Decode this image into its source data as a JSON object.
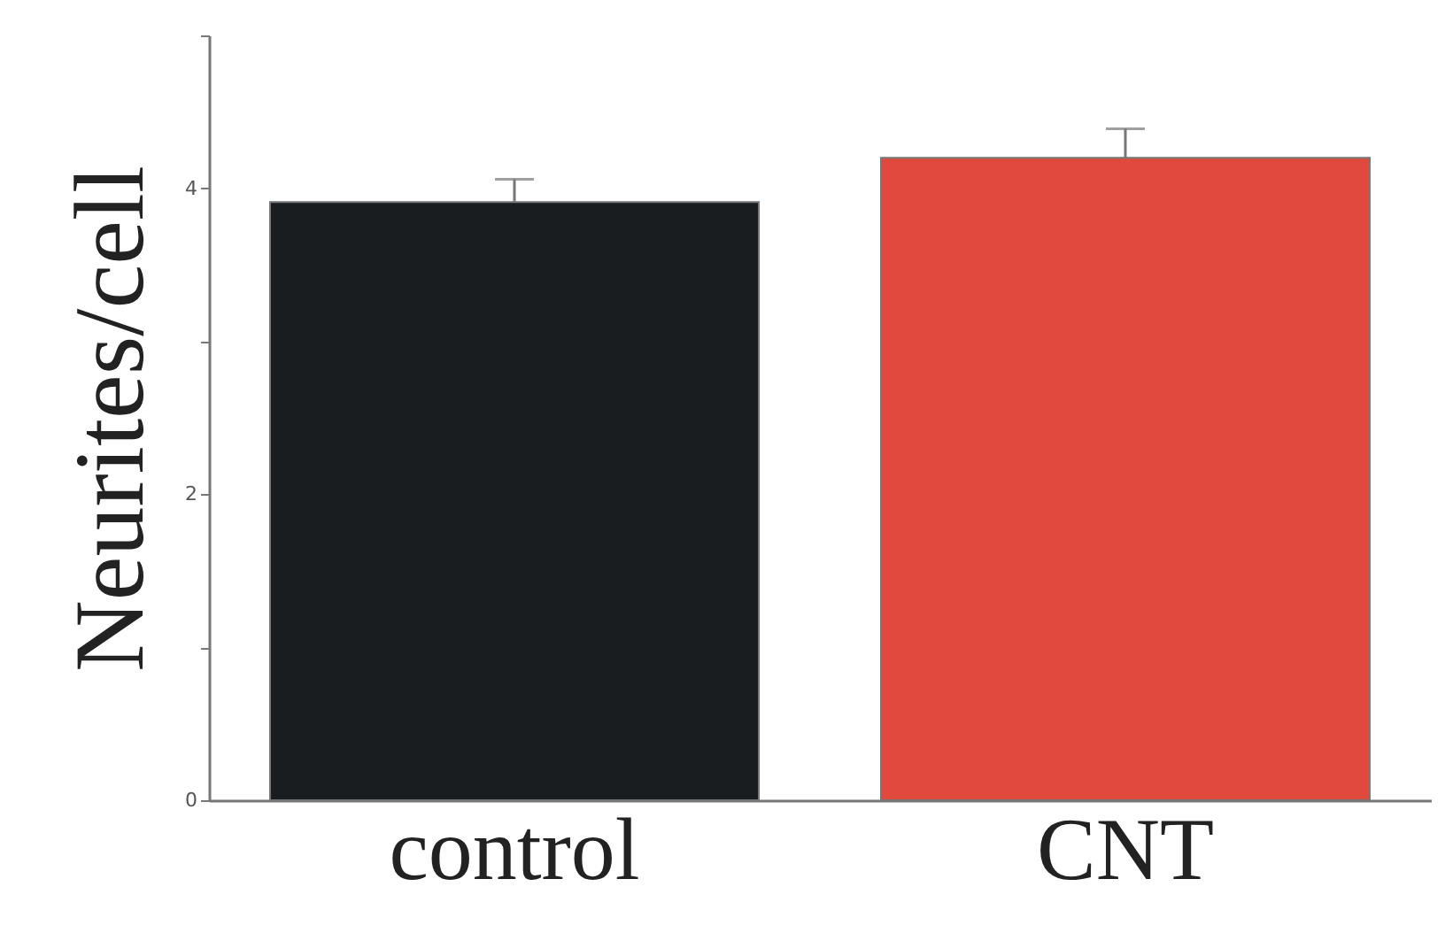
{
  "chart_data": {
    "type": "bar",
    "ylabel": "Neurites/cell",
    "categories": [
      "control",
      "CNT"
    ],
    "values": [
      3.91,
      4.2
    ],
    "colors": [
      "#1a1d20",
      "#e04a3c"
    ],
    "errors": [
      0.15,
      0.19
    ],
    "ylim": [
      0,
      5
    ],
    "yticks": [
      0,
      {
        "value": 1,
        "label": null
      },
      2,
      {
        "value": 3,
        "label": null
      },
      4,
      {
        "value": 5,
        "label": null
      }
    ],
    "grid": false
  }
}
